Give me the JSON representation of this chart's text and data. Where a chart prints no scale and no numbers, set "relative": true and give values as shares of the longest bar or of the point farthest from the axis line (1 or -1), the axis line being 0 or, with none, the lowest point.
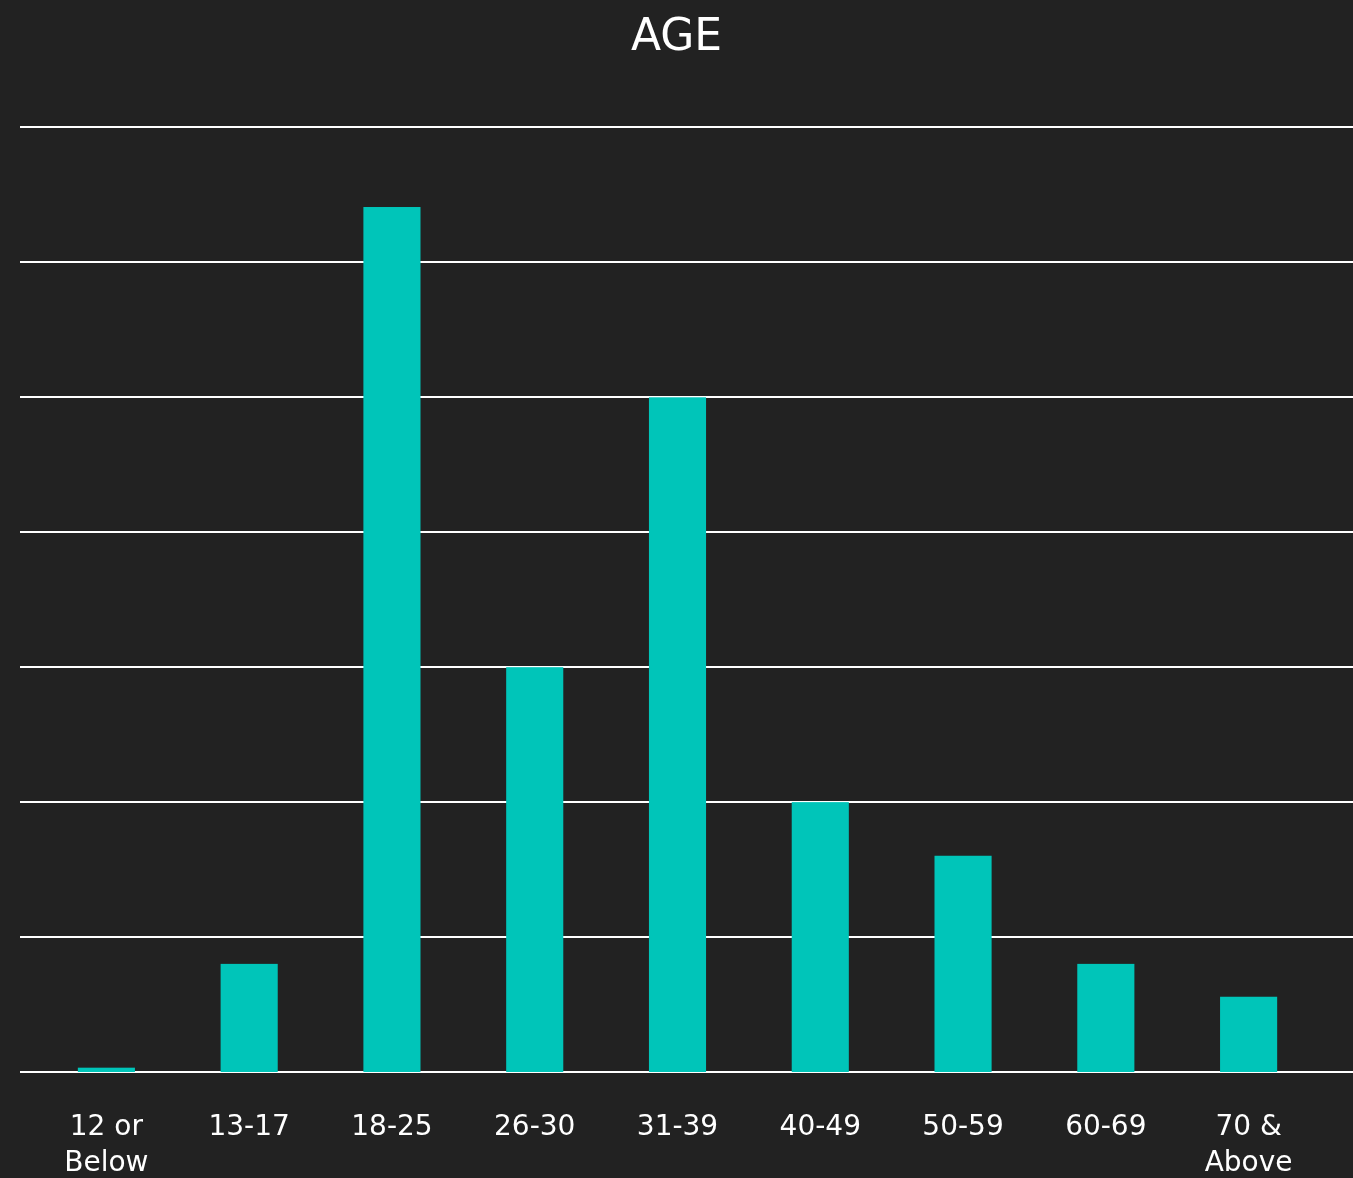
{
  "chart_data": {
    "type": "bar",
    "title": "AGE",
    "relative": true,
    "grid": true,
    "categories": [
      "12 or Below",
      "13-17",
      "18-25",
      "26-30",
      "31-39",
      "40-49",
      "50-59",
      "60-69",
      "70 & Above"
    ],
    "values": [
      0.005,
      0.125,
      1,
      0.468,
      0.78,
      0.312,
      0.25,
      0.125,
      0.087
    ],
    "color": "#00c5b9"
  }
}
